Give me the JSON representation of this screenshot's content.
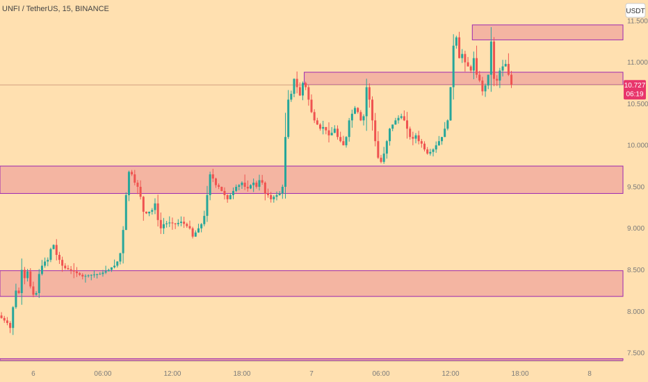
{
  "chart_data": {
    "type": "candlestick",
    "title": "UNFI / TetherUS, 15, BINANCE",
    "currency_button": "USDT",
    "price_axis": {
      "ticks": [
        11.5,
        11.0,
        10.5,
        10.0,
        9.5,
        9.0,
        8.5,
        8.0,
        7.5
      ],
      "tick_labels": [
        "11.500",
        "11.000",
        "10.500",
        "10.000",
        "9.500",
        "9.000",
        "8.500",
        "8.000",
        "7.500"
      ],
      "range": [
        7.4,
        11.75
      ]
    },
    "time_axis": {
      "labels": [
        "6",
        "06:00",
        "12:00",
        "18:00",
        "7",
        "06:00",
        "12:00",
        "18:00",
        "8"
      ],
      "positions": [
        11,
        35,
        59,
        83,
        107,
        131,
        155,
        179,
        203
      ],
      "range": [
        0,
        215
      ]
    },
    "current_price": {
      "value": 10.727,
      "label": "10.727",
      "countdown": "06:19"
    },
    "zones": [
      {
        "low": 11.27,
        "high": 11.45,
        "x_start": 163
      },
      {
        "low": 10.73,
        "high": 10.88,
        "x_start": 105
      },
      {
        "low": 9.42,
        "high": 9.75,
        "x_start": 0
      },
      {
        "low": 8.18,
        "high": 8.49,
        "x_start": 0
      },
      {
        "low": 7.41,
        "high": 7.43,
        "x_start": 0
      }
    ],
    "anchors": [
      [
        0,
        7.92
      ],
      [
        2,
        7.86
      ],
      [
        3,
        7.8
      ],
      [
        4,
        8.05
      ],
      [
        5,
        8.25
      ],
      [
        6,
        8.22
      ],
      [
        7,
        8.5
      ],
      [
        8,
        8.4
      ],
      [
        9,
        8.48
      ],
      [
        10,
        8.3
      ],
      [
        11,
        8.2
      ],
      [
        12,
        8.22
      ],
      [
        13,
        8.45
      ],
      [
        14,
        8.55
      ],
      [
        15,
        8.6
      ],
      [
        16,
        8.62
      ],
      [
        17,
        8.75
      ],
      [
        18,
        8.8
      ],
      [
        19,
        8.68
      ],
      [
        20,
        8.62
      ],
      [
        21,
        8.55
      ],
      [
        22,
        8.52
      ],
      [
        25,
        8.48
      ],
      [
        28,
        8.42
      ],
      [
        31,
        8.44
      ],
      [
        34,
        8.45
      ],
      [
        37,
        8.5
      ],
      [
        38,
        8.53
      ],
      [
        39,
        8.55
      ],
      [
        40,
        8.6
      ],
      [
        41,
        8.7
      ],
      [
        42,
        8.98
      ],
      [
        43,
        9.4
      ],
      [
        44,
        9.68
      ],
      [
        45,
        9.65
      ],
      [
        46,
        9.55
      ],
      [
        47,
        9.5
      ],
      [
        48,
        9.38
      ],
      [
        49,
        9.2
      ],
      [
        50,
        9.18
      ],
      [
        51,
        9.2
      ],
      [
        52,
        9.22
      ],
      [
        53,
        9.3
      ],
      [
        54,
        9.1
      ],
      [
        55,
        9.0
      ],
      [
        56,
        9.05
      ],
      [
        58,
        9.07
      ],
      [
        60,
        9.05
      ],
      [
        62,
        9.08
      ],
      [
        65,
        9.0
      ],
      [
        66,
        8.9
      ],
      [
        67,
        8.95
      ],
      [
        68,
        9.0
      ],
      [
        69,
        9.05
      ],
      [
        70,
        9.15
      ],
      [
        71,
        9.4
      ],
      [
        72,
        9.65
      ],
      [
        73,
        9.6
      ],
      [
        74,
        9.52
      ],
      [
        75,
        9.5
      ],
      [
        76,
        9.45
      ],
      [
        77,
        9.4
      ],
      [
        78,
        9.35
      ],
      [
        79,
        9.4
      ],
      [
        80,
        9.45
      ],
      [
        81,
        9.5
      ],
      [
        82,
        9.52
      ],
      [
        83,
        9.55
      ],
      [
        84,
        9.5
      ],
      [
        85,
        9.48
      ],
      [
        86,
        9.52
      ],
      [
        87,
        9.55
      ],
      [
        88,
        9.5
      ],
      [
        89,
        9.58
      ],
      [
        90,
        9.55
      ],
      [
        91,
        9.42
      ],
      [
        92,
        9.4
      ],
      [
        93,
        9.35
      ],
      [
        94,
        9.38
      ],
      [
        95,
        9.4
      ],
      [
        96,
        9.42
      ],
      [
        97,
        9.5
      ],
      [
        98,
        10.1
      ],
      [
        99,
        10.55
      ],
      [
        100,
        10.62
      ],
      [
        101,
        10.8
      ],
      [
        102,
        10.7
      ],
      [
        103,
        10.6
      ],
      [
        104,
        10.75
      ],
      [
        105,
        10.7
      ],
      [
        106,
        10.55
      ],
      [
        107,
        10.4
      ],
      [
        108,
        10.3
      ],
      [
        109,
        10.25
      ],
      [
        110,
        10.2
      ],
      [
        111,
        10.22
      ],
      [
        112,
        10.18
      ],
      [
        113,
        10.12
      ],
      [
        114,
        10.15
      ],
      [
        115,
        10.2
      ],
      [
        116,
        10.1
      ],
      [
        117,
        10.05
      ],
      [
        118,
        10.0
      ],
      [
        119,
        10.1
      ],
      [
        120,
        10.3
      ],
      [
        121,
        10.38
      ],
      [
        122,
        10.45
      ],
      [
        123,
        10.4
      ],
      [
        124,
        10.3
      ],
      [
        125,
        10.35
      ],
      [
        126,
        10.7
      ],
      [
        127,
        10.55
      ],
      [
        128,
        10.3
      ],
      [
        129,
        10.05
      ],
      [
        130,
        9.85
      ],
      [
        131,
        9.8
      ],
      [
        132,
        9.9
      ],
      [
        133,
        10.05
      ],
      [
        134,
        10.2
      ],
      [
        135,
        10.25
      ],
      [
        136,
        10.3
      ],
      [
        137,
        10.33
      ],
      [
        138,
        10.35
      ],
      [
        139,
        10.3
      ],
      [
        140,
        10.2
      ],
      [
        141,
        10.1
      ],
      [
        142,
        10.08
      ],
      [
        143,
        10.12
      ],
      [
        144,
        10.05
      ],
      [
        145,
        10.02
      ],
      [
        146,
        9.95
      ],
      [
        147,
        9.9
      ],
      [
        148,
        9.92
      ],
      [
        149,
        9.95
      ],
      [
        150,
        10.0
      ],
      [
        151,
        10.05
      ],
      [
        152,
        10.1
      ],
      [
        153,
        10.2
      ],
      [
        154,
        10.3
      ],
      [
        155,
        10.7
      ],
      [
        156,
        11.2
      ],
      [
        157,
        11.3
      ],
      [
        158,
        11.05
      ],
      [
        159,
        11.1
      ],
      [
        160,
        11.0
      ],
      [
        161,
        10.95
      ],
      [
        162,
        10.9
      ],
      [
        163,
        11.05
      ],
      [
        164,
        10.85
      ],
      [
        165,
        10.78
      ],
      [
        166,
        10.65
      ],
      [
        167,
        10.72
      ],
      [
        168,
        10.85
      ],
      [
        169,
        11.25
      ],
      [
        170,
        10.8
      ],
      [
        171,
        10.78
      ],
      [
        172,
        10.9
      ],
      [
        173,
        10.95
      ],
      [
        174,
        10.98
      ],
      [
        175,
        10.85
      ],
      [
        176,
        10.73
      ]
    ]
  }
}
